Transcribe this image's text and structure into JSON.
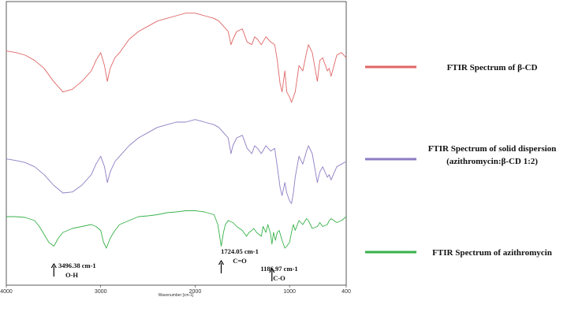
{
  "chart_data": {
    "type": "line",
    "title": "",
    "xlabel": "Wavenumber [cm-1]",
    "ylabel": "",
    "xlim": [
      4000,
      400
    ],
    "x_reversed": true,
    "x_ticks": [
      4000,
      3000,
      2000,
      1000,
      400
    ],
    "grid": false,
    "legend_position": "right",
    "series": [
      {
        "name": "FTIR Spectrum of β-CD",
        "color": "#e06666",
        "x": [
          4000,
          3900,
          3800,
          3700,
          3600,
          3500,
          3400,
          3300,
          3200,
          3100,
          3050,
          3000,
          2960,
          2930,
          2900,
          2850,
          2800,
          2700,
          2600,
          2500,
          2400,
          2300,
          2200,
          2100,
          2000,
          1900,
          1800,
          1750,
          1700,
          1650,
          1620,
          1600,
          1560,
          1500,
          1450,
          1400,
          1370,
          1340,
          1300,
          1250,
          1200,
          1158,
          1130,
          1100,
          1080,
          1050,
          1030,
          1000,
          980,
          960,
          940,
          900,
          860,
          820,
          800,
          760,
          706,
          680,
          650,
          600,
          580,
          560,
          500,
          450,
          400
        ],
        "y": [
          82,
          85,
          90,
          100,
          115,
          140,
          160,
          155,
          140,
          120,
          100,
          85,
          110,
          140,
          115,
          95,
          85,
          60,
          45,
          35,
          25,
          20,
          15,
          10,
          10,
          15,
          20,
          25,
          35,
          45,
          70,
          60,
          45,
          40,
          65,
          70,
          55,
          60,
          70,
          55,
          65,
          70,
          100,
          145,
          160,
          120,
          160,
          170,
          180,
          170,
          160,
          110,
          120,
          85,
          70,
          85,
          140,
          100,
          95,
          120,
          115,
          130,
          90,
          85,
          95
        ]
      },
      {
        "name": "FTIR Spectrum of solid dispersion (azithromycin:β-CD 1:2)",
        "color": "#8e7cc3",
        "x": [
          4000,
          3900,
          3800,
          3700,
          3600,
          3500,
          3400,
          3300,
          3200,
          3100,
          3050,
          3000,
          2960,
          2930,
          2900,
          2850,
          2800,
          2700,
          2600,
          2500,
          2400,
          2300,
          2200,
          2100,
          2000,
          1900,
          1800,
          1750,
          1700,
          1650,
          1620,
          1600,
          1560,
          1500,
          1450,
          1400,
          1370,
          1340,
          1300,
          1250,
          1200,
          1158,
          1130,
          1100,
          1080,
          1050,
          1030,
          1000,
          980,
          960,
          940,
          900,
          860,
          820,
          800,
          760,
          706,
          680,
          650,
          600,
          580,
          560,
          500,
          450,
          400
        ],
        "y": [
          85,
          88,
          92,
          100,
          115,
          135,
          150,
          148,
          135,
          115,
          95,
          80,
          100,
          130,
          110,
          90,
          80,
          60,
          45,
          35,
          25,
          20,
          15,
          15,
          10,
          15,
          20,
          25,
          35,
          45,
          75,
          60,
          45,
          40,
          65,
          75,
          60,
          65,
          75,
          60,
          70,
          65,
          100,
          140,
          155,
          130,
          150,
          165,
          170,
          150,
          120,
          80,
          95,
          70,
          60,
          75,
          130,
          110,
          100,
          120,
          115,
          125,
          100,
          95,
          90
        ]
      },
      {
        "name": "FTIR Spectrum of azithromycin",
        "color": "#38b24a",
        "x": [
          4000,
          3900,
          3800,
          3700,
          3650,
          3600,
          3550,
          3496,
          3450,
          3400,
          3300,
          3200,
          3100,
          3050,
          3000,
          2970,
          2940,
          2900,
          2850,
          2800,
          2700,
          2600,
          2500,
          2400,
          2300,
          2200,
          2100,
          2000,
          1900,
          1800,
          1760,
          1724,
          1700,
          1680,
          1650,
          1600,
          1560,
          1500,
          1456,
          1430,
          1400,
          1380,
          1350,
          1300,
          1280,
          1250,
          1230,
          1200,
          1187,
          1170,
          1150,
          1130,
          1110,
          1080,
          1050,
          1030,
          1000,
          980,
          960,
          940,
          900,
          860,
          820,
          800,
          760,
          706,
          680,
          650,
          600,
          580,
          560,
          500,
          450,
          400
        ],
        "y": [
          20,
          20,
          22,
          30,
          45,
          65,
          85,
          95,
          75,
          60,
          50,
          45,
          40,
          45,
          55,
          85,
          100,
          75,
          55,
          40,
          30,
          20,
          18,
          15,
          10,
          8,
          5,
          5,
          8,
          15,
          40,
          95,
          60,
          40,
          30,
          35,
          45,
          55,
          70,
          60,
          55,
          50,
          60,
          70,
          45,
          60,
          40,
          65,
          90,
          60,
          80,
          60,
          55,
          80,
          100,
          95,
          85,
          60,
          40,
          55,
          30,
          40,
          25,
          30,
          50,
          45,
          35,
          45,
          40,
          30,
          25,
          35,
          30,
          20
        ]
      }
    ],
    "annotations": [
      {
        "line1": "3496.38 cm-1",
        "line2": "O-H",
        "x": 3496.38
      },
      {
        "line1": "1724.05 cm-1",
        "line2": "C=O",
        "x": 1724.05
      },
      {
        "line1": "1186.97 cm-1",
        "line2": "C-O",
        "x": 1186.97
      }
    ]
  }
}
